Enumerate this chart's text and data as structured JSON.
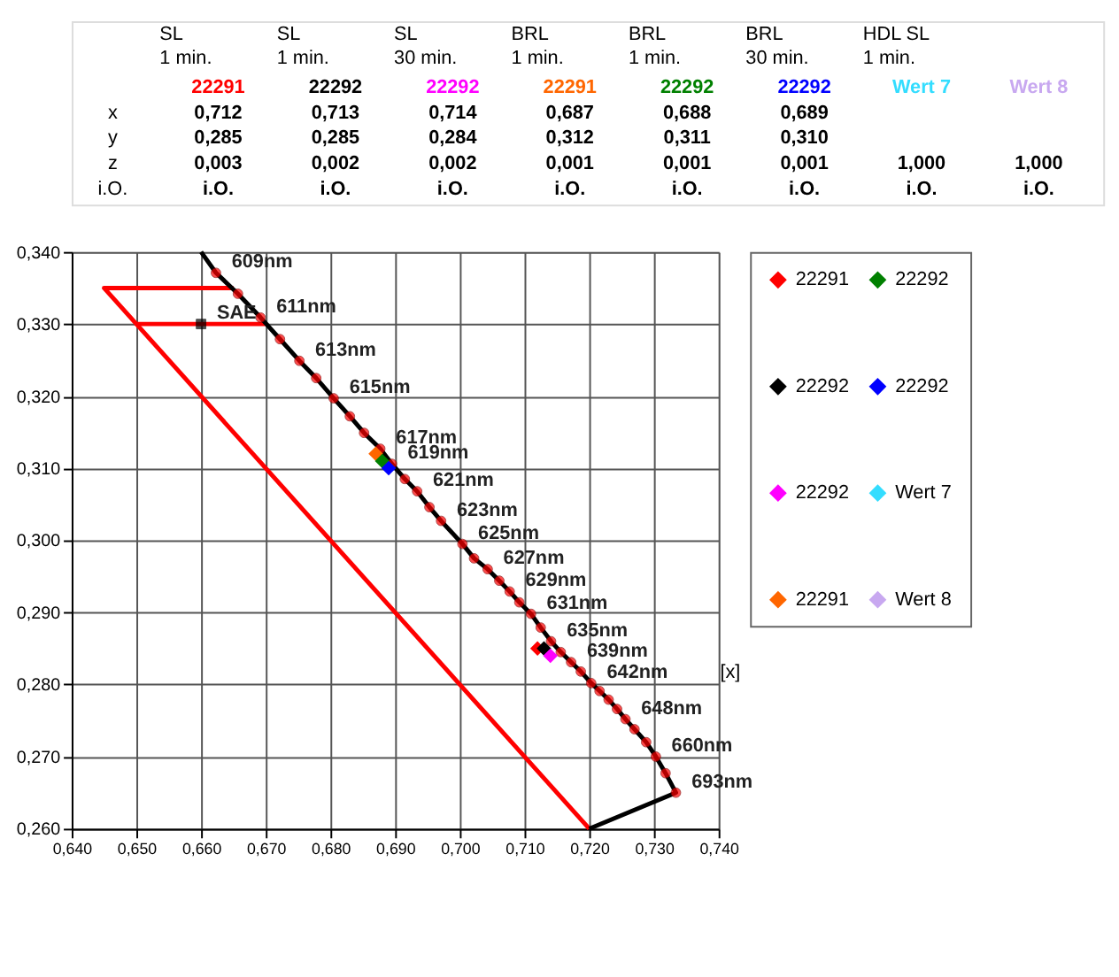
{
  "chart_data": [
    {
      "type": "other",
      "annotations": [
        "SL\n1 min.",
        "SL\n1 min.",
        "SL\n30 min.",
        "BRL\n1 min.",
        "BRL\n1 min.",
        "BRL\n30 min.",
        "HDL SL\n1 min."
      ],
      "categories": [
        "22291",
        "22292",
        "22292",
        "22291",
        "22292",
        "22292",
        "Wert 7",
        "Wert 8"
      ],
      "colors": [
        "#ff0000",
        "#000000",
        "#ff00ff",
        "#ff6600",
        "#008000",
        "#0000ff",
        "#33ddff",
        "#c8a8f0"
      ],
      "y_categories": [
        "x",
        "y",
        "z",
        "i.O."
      ],
      "cell_labels": [
        [
          "0,712",
          "0,713",
          "0,714",
          "0,687",
          "0,688",
          "0,689",
          null,
          null
        ],
        [
          "0,285",
          "0,285",
          "0,284",
          "0,312",
          "0,311",
          "0,310",
          null,
          null
        ],
        [
          "0,003",
          "0,002",
          "0,002",
          "0,001",
          "0,001",
          "0,001",
          "1,000",
          "1,000"
        ],
        [
          "i.O.",
          "i.O.",
          "i.O.",
          "i.O.",
          "i.O.",
          "i.O.",
          "i.O.",
          "i.O."
        ]
      ]
    },
    {
      "type": "scatter",
      "xlabel": "[x]",
      "legend": "right",
      "grid": true,
      "xlim": [
        0.64,
        0.74
      ],
      "ylim": [
        0.26,
        0.34
      ],
      "xticks": [
        {
          "value": 0.64,
          "label": "0,640"
        },
        {
          "value": 0.65,
          "label": "0,650"
        },
        {
          "value": 0.66,
          "label": "0,660"
        },
        {
          "value": 0.67,
          "label": "0,670"
        },
        {
          "value": 0.68,
          "label": "0,680"
        },
        {
          "value": 0.69,
          "label": "0,690"
        },
        {
          "value": 0.7,
          "label": "0,700"
        },
        {
          "value": 0.71,
          "label": "0,710"
        },
        {
          "value": 0.72,
          "label": "0,720"
        },
        {
          "value": 0.73,
          "label": "0,730"
        },
        {
          "value": 0.74,
          "label": "0,740"
        }
      ],
      "yticks": [
        {
          "value": 0.26,
          "label": "0,260"
        },
        {
          "value": 0.27,
          "label": "0,270"
        },
        {
          "value": 0.28,
          "label": "0,280"
        },
        {
          "value": 0.29,
          "label": "0,290"
        },
        {
          "value": 0.3,
          "label": "0,300"
        },
        {
          "value": 0.31,
          "label": "0,310"
        },
        {
          "value": 0.32,
          "label": "0,320"
        },
        {
          "value": 0.33,
          "label": "0,330"
        },
        {
          "value": 0.34,
          "label": "0,340"
        }
      ],
      "series": [
        {
          "type": "line",
          "color": "#ff0000",
          "marker": "none",
          "x": [
            0.665,
            0.645,
            0.72
          ],
          "values": [
            0.335,
            0.335,
            0.26
          ]
        },
        {
          "type": "line",
          "color": "#ff0000",
          "marker": "none",
          "x": [
            0.65,
            0.67
          ],
          "values": [
            0.33,
            0.33
          ]
        },
        {
          "type": "line",
          "color": "#000000",
          "marker": "none",
          "x": [
            0.66,
            0.6623,
            0.6657,
            0.6692,
            0.6722,
            0.6752,
            0.6778,
            0.6805,
            0.683,
            0.6852,
            0.6877,
            0.6895,
            0.6915,
            0.6934,
            0.6953,
            0.6971,
            0.7004,
            0.7022,
            0.7043,
            0.7061,
            0.7077,
            0.7092,
            0.711,
            0.7125,
            0.7141,
            0.7156,
            0.7172,
            0.7187,
            0.7203,
            0.7216,
            0.723,
            0.7243,
            0.7256,
            0.727,
            0.7288,
            0.7303,
            0.7318,
            0.7334,
            0.72
          ],
          "values": [
            0.34,
            0.3371,
            0.3342,
            0.3309,
            0.3279,
            0.3249,
            0.3225,
            0.3197,
            0.3172,
            0.3149,
            0.3127,
            0.3106,
            0.3085,
            0.3068,
            0.3046,
            0.3027,
            0.2995,
            0.2975,
            0.296,
            0.2944,
            0.2929,
            0.2914,
            0.2898,
            0.2879,
            0.286,
            0.2845,
            0.2831,
            0.2818,
            0.2802,
            0.2791,
            0.2779,
            0.2766,
            0.2752,
            0.2738,
            0.272,
            0.27,
            0.2677,
            0.265,
            0.26
          ]
        },
        {
          "type": "scatter",
          "color": "#ff0000",
          "marker": "circle",
          "x": [
            0.6623,
            0.6657,
            0.6692,
            0.6722,
            0.6752,
            0.6778,
            0.6805,
            0.683,
            0.6852,
            0.6877,
            0.6895,
            0.6915,
            0.6934,
            0.6953,
            0.6971,
            0.7004,
            0.7022,
            0.7043,
            0.7061,
            0.7077,
            0.7092,
            0.711,
            0.7125,
            0.7141,
            0.7156,
            0.7172,
            0.7187,
            0.7203,
            0.7216,
            0.723,
            0.7243,
            0.7256,
            0.727,
            0.7288,
            0.7303,
            0.7318,
            0.7334
          ],
          "values": [
            0.3371,
            0.3342,
            0.3309,
            0.3279,
            0.3249,
            0.3225,
            0.3197,
            0.3172,
            0.3149,
            0.3127,
            0.3106,
            0.3085,
            0.3068,
            0.3046,
            0.3027,
            0.2995,
            0.2975,
            0.296,
            0.2944,
            0.2929,
            0.2914,
            0.2898,
            0.2879,
            0.286,
            0.2845,
            0.2831,
            0.2818,
            0.2802,
            0.2791,
            0.2779,
            0.2766,
            0.2752,
            0.2738,
            0.272,
            0.27,
            0.2677,
            0.265
          ]
        },
        {
          "type": "scatter",
          "color": "#000000",
          "marker": "square",
          "x": [
            0.66
          ],
          "values": [
            0.33
          ]
        },
        {
          "name": "22291",
          "color": "#ff0000",
          "marker": "diamond",
          "x": [
            0.712
          ],
          "values": [
            0.285
          ]
        },
        {
          "name": "22292",
          "color": "#000000",
          "marker": "diamond",
          "x": [
            0.713
          ],
          "values": [
            0.285
          ]
        },
        {
          "name": "22292",
          "color": "#ff00ff",
          "marker": "diamond",
          "x": [
            0.714
          ],
          "values": [
            0.284
          ]
        },
        {
          "name": "22291",
          "color": "#ff6600",
          "marker": "diamond",
          "x": [
            0.687
          ],
          "values": [
            0.312
          ]
        },
        {
          "name": "22292",
          "color": "#008000",
          "marker": "diamond",
          "x": [
            0.688
          ],
          "values": [
            0.311
          ]
        },
        {
          "name": "22292",
          "color": "#0000ff",
          "marker": "diamond",
          "x": [
            0.689
          ],
          "values": [
            0.31
          ]
        },
        {
          "name": "Wert 7",
          "color": "#33ddff",
          "marker": "diamond"
        },
        {
          "name": "Wert 8",
          "color": "#c8a8f0",
          "marker": "diamond"
        }
      ],
      "annotations": [
        {
          "text": "SAE",
          "x": 0.66,
          "y": 0.33
        },
        {
          "text": "609nm",
          "x": 0.6623,
          "y": 0.3371
        },
        {
          "text": "611nm",
          "x": 0.6692,
          "y": 0.3309
        },
        {
          "text": "613nm",
          "x": 0.6752,
          "y": 0.3249
        },
        {
          "text": "615nm",
          "x": 0.6805,
          "y": 0.3197
        },
        {
          "text": "617nm",
          "x": 0.6877,
          "y": 0.3127
        },
        {
          "text": "619nm",
          "x": 0.6895,
          "y": 0.3106
        },
        {
          "text": "621nm",
          "x": 0.6934,
          "y": 0.3068
        },
        {
          "text": "623nm",
          "x": 0.6971,
          "y": 0.3027
        },
        {
          "text": "625nm",
          "x": 0.7004,
          "y": 0.2995
        },
        {
          "text": "627nm",
          "x": 0.7043,
          "y": 0.296
        },
        {
          "text": "629nm",
          "x": 0.7077,
          "y": 0.2929
        },
        {
          "text": "631nm",
          "x": 0.711,
          "y": 0.2898
        },
        {
          "text": "635nm",
          "x": 0.7141,
          "y": 0.286
        },
        {
          "text": "639nm",
          "x": 0.7172,
          "y": 0.2831
        },
        {
          "text": "642nm",
          "x": 0.7203,
          "y": 0.2802
        },
        {
          "text": "648nm",
          "x": 0.7256,
          "y": 0.2752
        },
        {
          "text": "660nm",
          "x": 0.7303,
          "y": 0.27
        },
        {
          "text": "693nm",
          "x": 0.7334,
          "y": 0.265
        }
      ]
    }
  ]
}
